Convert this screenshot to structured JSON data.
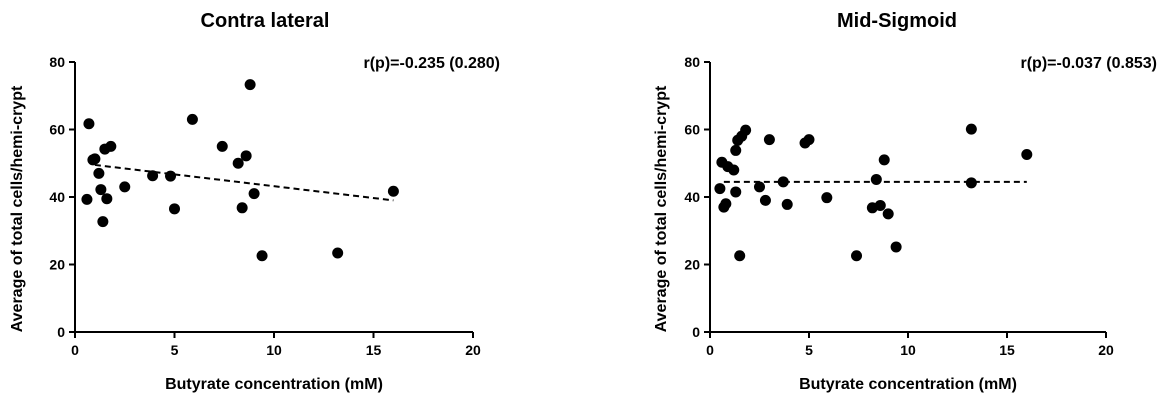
{
  "chart_data": [
    {
      "type": "scatter",
      "title": "Contra lateral",
      "xlabel": "Butyrate  concentration (mM)",
      "ylabel": "Average of total cells/hemi-crypt",
      "annotation": "r(p)=-0.235 (0.280)",
      "xlim": [
        0,
        20
      ],
      "ylim": [
        0,
        80
      ],
      "xticks": [
        "0",
        "5",
        "10",
        "15",
        "20"
      ],
      "yticks": [
        "0",
        "20",
        "40",
        "60",
        "80"
      ],
      "grid": false,
      "trend": {
        "style": "dashed",
        "x": [
          1.0,
          16.0
        ],
        "y": [
          49.5,
          39.0
        ]
      },
      "colors": {
        "points": "#000000",
        "trend": "#000000"
      },
      "x": [
        0.6,
        0.7,
        0.9,
        1.0,
        1.2,
        1.3,
        1.4,
        1.5,
        1.6,
        1.8,
        2.5,
        3.9,
        4.8,
        5.0,
        5.9,
        7.4,
        8.2,
        8.4,
        8.6,
        8.8,
        9.0,
        9.4,
        13.2,
        16.0
      ],
      "y": [
        39.3,
        61.7,
        51.0,
        51.3,
        47.0,
        42.2,
        32.7,
        54.2,
        39.5,
        55.0,
        43.0,
        46.3,
        46.2,
        36.5,
        63.0,
        55.0,
        50.0,
        36.8,
        52.2,
        73.3,
        41.0,
        22.6,
        23.4,
        41.7
      ]
    },
    {
      "type": "scatter",
      "title": "Mid-Sigmoid",
      "xlabel": "Butyrate  concentration (mM)",
      "ylabel": "Average of total cells/hemi-crypt",
      "annotation": "r(p)=-0.037 (0.853)",
      "xlim": [
        0,
        20
      ],
      "ylim": [
        0,
        80
      ],
      "xticks": [
        "0",
        "5",
        "10",
        "15",
        "20"
      ],
      "yticks": [
        "0",
        "20",
        "40",
        "60",
        "80"
      ],
      "grid": false,
      "trend": {
        "style": "dashed",
        "x": [
          0.7,
          16.0
        ],
        "y": [
          44.5,
          44.5
        ]
      },
      "colors": {
        "points": "#000000",
        "trend": "#000000"
      },
      "x": [
        0.5,
        0.6,
        0.7,
        0.8,
        0.9,
        1.2,
        1.3,
        1.3,
        1.4,
        1.5,
        1.6,
        1.8,
        2.5,
        2.8,
        3.0,
        3.7,
        3.9,
        4.8,
        5.0,
        5.9,
        7.4,
        8.2,
        8.4,
        8.6,
        8.8,
        9.0,
        9.4,
        13.2,
        13.2,
        16.0
      ],
      "y": [
        42.5,
        50.3,
        37.0,
        38.0,
        49.0,
        48.0,
        41.5,
        53.8,
        56.8,
        22.6,
        58.0,
        59.8,
        43.0,
        39.0,
        57.0,
        44.5,
        37.8,
        56.0,
        57.0,
        39.8,
        22.6,
        36.8,
        45.2,
        37.5,
        51.0,
        35.0,
        25.2,
        60.1,
        44.2,
        52.6
      ]
    }
  ]
}
